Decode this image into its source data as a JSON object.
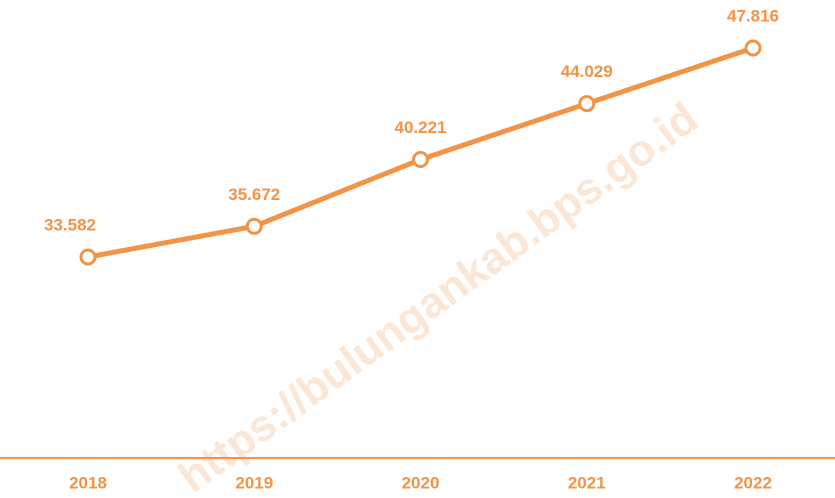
{
  "chart_data": {
    "type": "line",
    "categories": [
      "2018",
      "2019",
      "2020",
      "2021",
      "2022"
    ],
    "series": [
      {
        "color": "#f39345",
        "values": [
          33.582,
          35.672,
          40.221,
          44.029,
          47.816
        ]
      }
    ],
    "watermark": "https://bulungankab.bps.go.id"
  }
}
